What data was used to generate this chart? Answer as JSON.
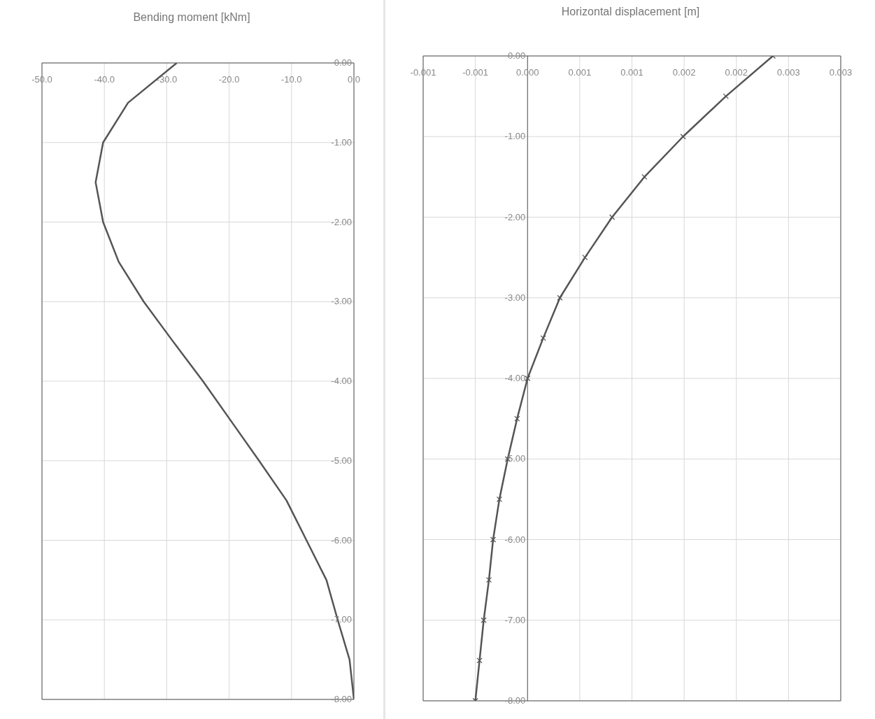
{
  "chart_data": [
    {
      "type": "line",
      "title": "Bending moment [kNm]",
      "grid": true,
      "xlim": [
        -50,
        0
      ],
      "xticks": [
        {
          "value": -50,
          "label": "-50.0"
        },
        {
          "value": -40,
          "label": "-40.0"
        },
        {
          "value": -30,
          "label": "-30.0"
        },
        {
          "value": -20,
          "label": "-20.0"
        },
        {
          "value": -10,
          "label": "-10.0"
        },
        {
          "value": 0,
          "label": "0.0"
        }
      ],
      "ylim": [
        -8,
        0
      ],
      "yticks": [
        {
          "value": 0,
          "label": "0.00"
        },
        {
          "value": -1,
          "label": "-1.00"
        },
        {
          "value": -2,
          "label": "-2.00"
        },
        {
          "value": -3,
          "label": "-3.00"
        },
        {
          "value": -4,
          "label": "-4.00"
        },
        {
          "value": -5,
          "label": "-5.00"
        },
        {
          "value": -6,
          "label": "-6.00"
        },
        {
          "value": -7,
          "label": "-7.00"
        },
        {
          "value": -8,
          "label": "-8.00"
        }
      ],
      "series": [
        {
          "color": "#555555",
          "x": [
            -28.4,
            -36.2,
            -40.2,
            -41.4,
            -40.2,
            -37.7,
            -33.7,
            -29.0,
            -24.2,
            -19.7,
            -15.2,
            -10.8,
            -7.6,
            -4.4,
            -2.6,
            -0.7,
            0
          ],
          "values": [
            0,
            -0.5,
            -1,
            -1.5,
            -2,
            -2.5,
            -3,
            -3.5,
            -4,
            -4.5,
            -5,
            -5.5,
            -6,
            -6.5,
            -7,
            -7.5,
            -8
          ]
        }
      ]
    },
    {
      "type": "line",
      "title": "Horizontal displacement [m]",
      "grid": true,
      "marker": "cross",
      "xlim": [
        -0.001,
        0.003
      ],
      "xticks": [
        {
          "value": -0.001,
          "label": "-0.001"
        },
        {
          "value": -0.0005,
          "label": "-0.001"
        },
        {
          "value": 0,
          "label": "0.000"
        },
        {
          "value": 0.0005,
          "label": "0.001"
        },
        {
          "value": 0.001,
          "label": "0.001"
        },
        {
          "value": 0.0015,
          "label": "0.002"
        },
        {
          "value": 0.002,
          "label": "0.002"
        },
        {
          "value": 0.0025,
          "label": "0.003"
        },
        {
          "value": 0.003,
          "label": "0.003"
        }
      ],
      "ylim": [
        -8,
        0
      ],
      "yticks": [
        {
          "value": 0,
          "label": "0.00"
        },
        {
          "value": -1,
          "label": "-1.00"
        },
        {
          "value": -2,
          "label": "-2.00"
        },
        {
          "value": -3,
          "label": "-3.00"
        },
        {
          "value": -4,
          "label": "-4.00"
        },
        {
          "value": -5,
          "label": "-5.00"
        },
        {
          "value": -6,
          "label": "-6.00"
        },
        {
          "value": -7,
          "label": "-7.00"
        },
        {
          "value": -8,
          "label": "-8.00"
        }
      ],
      "series": [
        {
          "color": "#555555",
          "x": [
            0.00235,
            0.0019,
            0.00149,
            0.00112,
            0.00081,
            0.00055,
            0.00031,
            0.00015,
            0,
            -0.0001,
            -0.00019,
            -0.00027,
            -0.00033,
            -0.00037,
            -0.00042,
            -0.00046,
            -0.0005
          ],
          "values": [
            0,
            -0.5,
            -1,
            -1.5,
            -2,
            -2.5,
            -3,
            -3.5,
            -4,
            -4.5,
            -5,
            -5.5,
            -6,
            -6.5,
            -7,
            -7.5,
            -8
          ]
        }
      ]
    }
  ]
}
